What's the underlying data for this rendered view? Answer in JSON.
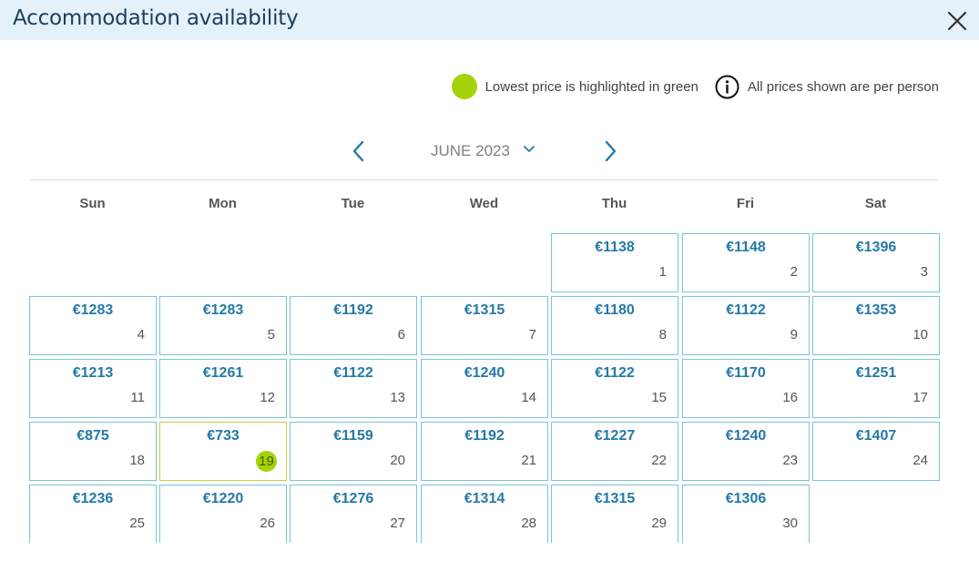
{
  "dialog": {
    "title": "Accommodation availability",
    "close_icon": "close-icon"
  },
  "legend": {
    "lowest_text": "Lowest price is highlighted in green",
    "per_person_text": "All prices shown are per person",
    "highlight_color": "#a3d40a"
  },
  "calendar": {
    "month": "JUNE 2023",
    "weekdays": [
      "Sun",
      "Mon",
      "Tue",
      "Wed",
      "Thu",
      "Fri",
      "Sat"
    ],
    "first_weekday_index": 4,
    "days": [
      {
        "day": "1",
        "price": "€1138"
      },
      {
        "day": "2",
        "price": "€1148"
      },
      {
        "day": "3",
        "price": "€1396"
      },
      {
        "day": "4",
        "price": "€1283"
      },
      {
        "day": "5",
        "price": "€1283"
      },
      {
        "day": "6",
        "price": "€1192"
      },
      {
        "day": "7",
        "price": "€1315"
      },
      {
        "day": "8",
        "price": "€1180"
      },
      {
        "day": "9",
        "price": "€1122"
      },
      {
        "day": "10",
        "price": "€1353"
      },
      {
        "day": "11",
        "price": "€1213"
      },
      {
        "day": "12",
        "price": "€1261"
      },
      {
        "day": "13",
        "price": "€1122"
      },
      {
        "day": "14",
        "price": "€1240"
      },
      {
        "day": "15",
        "price": "€1122"
      },
      {
        "day": "16",
        "price": "€1170"
      },
      {
        "day": "17",
        "price": "€1251"
      },
      {
        "day": "18",
        "price": "€875"
      },
      {
        "day": "19",
        "price": "€733",
        "lowest": true
      },
      {
        "day": "20",
        "price": "€1159"
      },
      {
        "day": "21",
        "price": "€1192"
      },
      {
        "day": "22",
        "price": "€1227"
      },
      {
        "day": "23",
        "price": "€1240"
      },
      {
        "day": "24",
        "price": "€1407"
      },
      {
        "day": "25",
        "price": "€1236"
      },
      {
        "day": "26",
        "price": "€1220"
      },
      {
        "day": "27",
        "price": "€1276"
      },
      {
        "day": "28",
        "price": "€1314"
      },
      {
        "day": "29",
        "price": "€1315"
      },
      {
        "day": "30",
        "price": "€1306"
      }
    ]
  }
}
